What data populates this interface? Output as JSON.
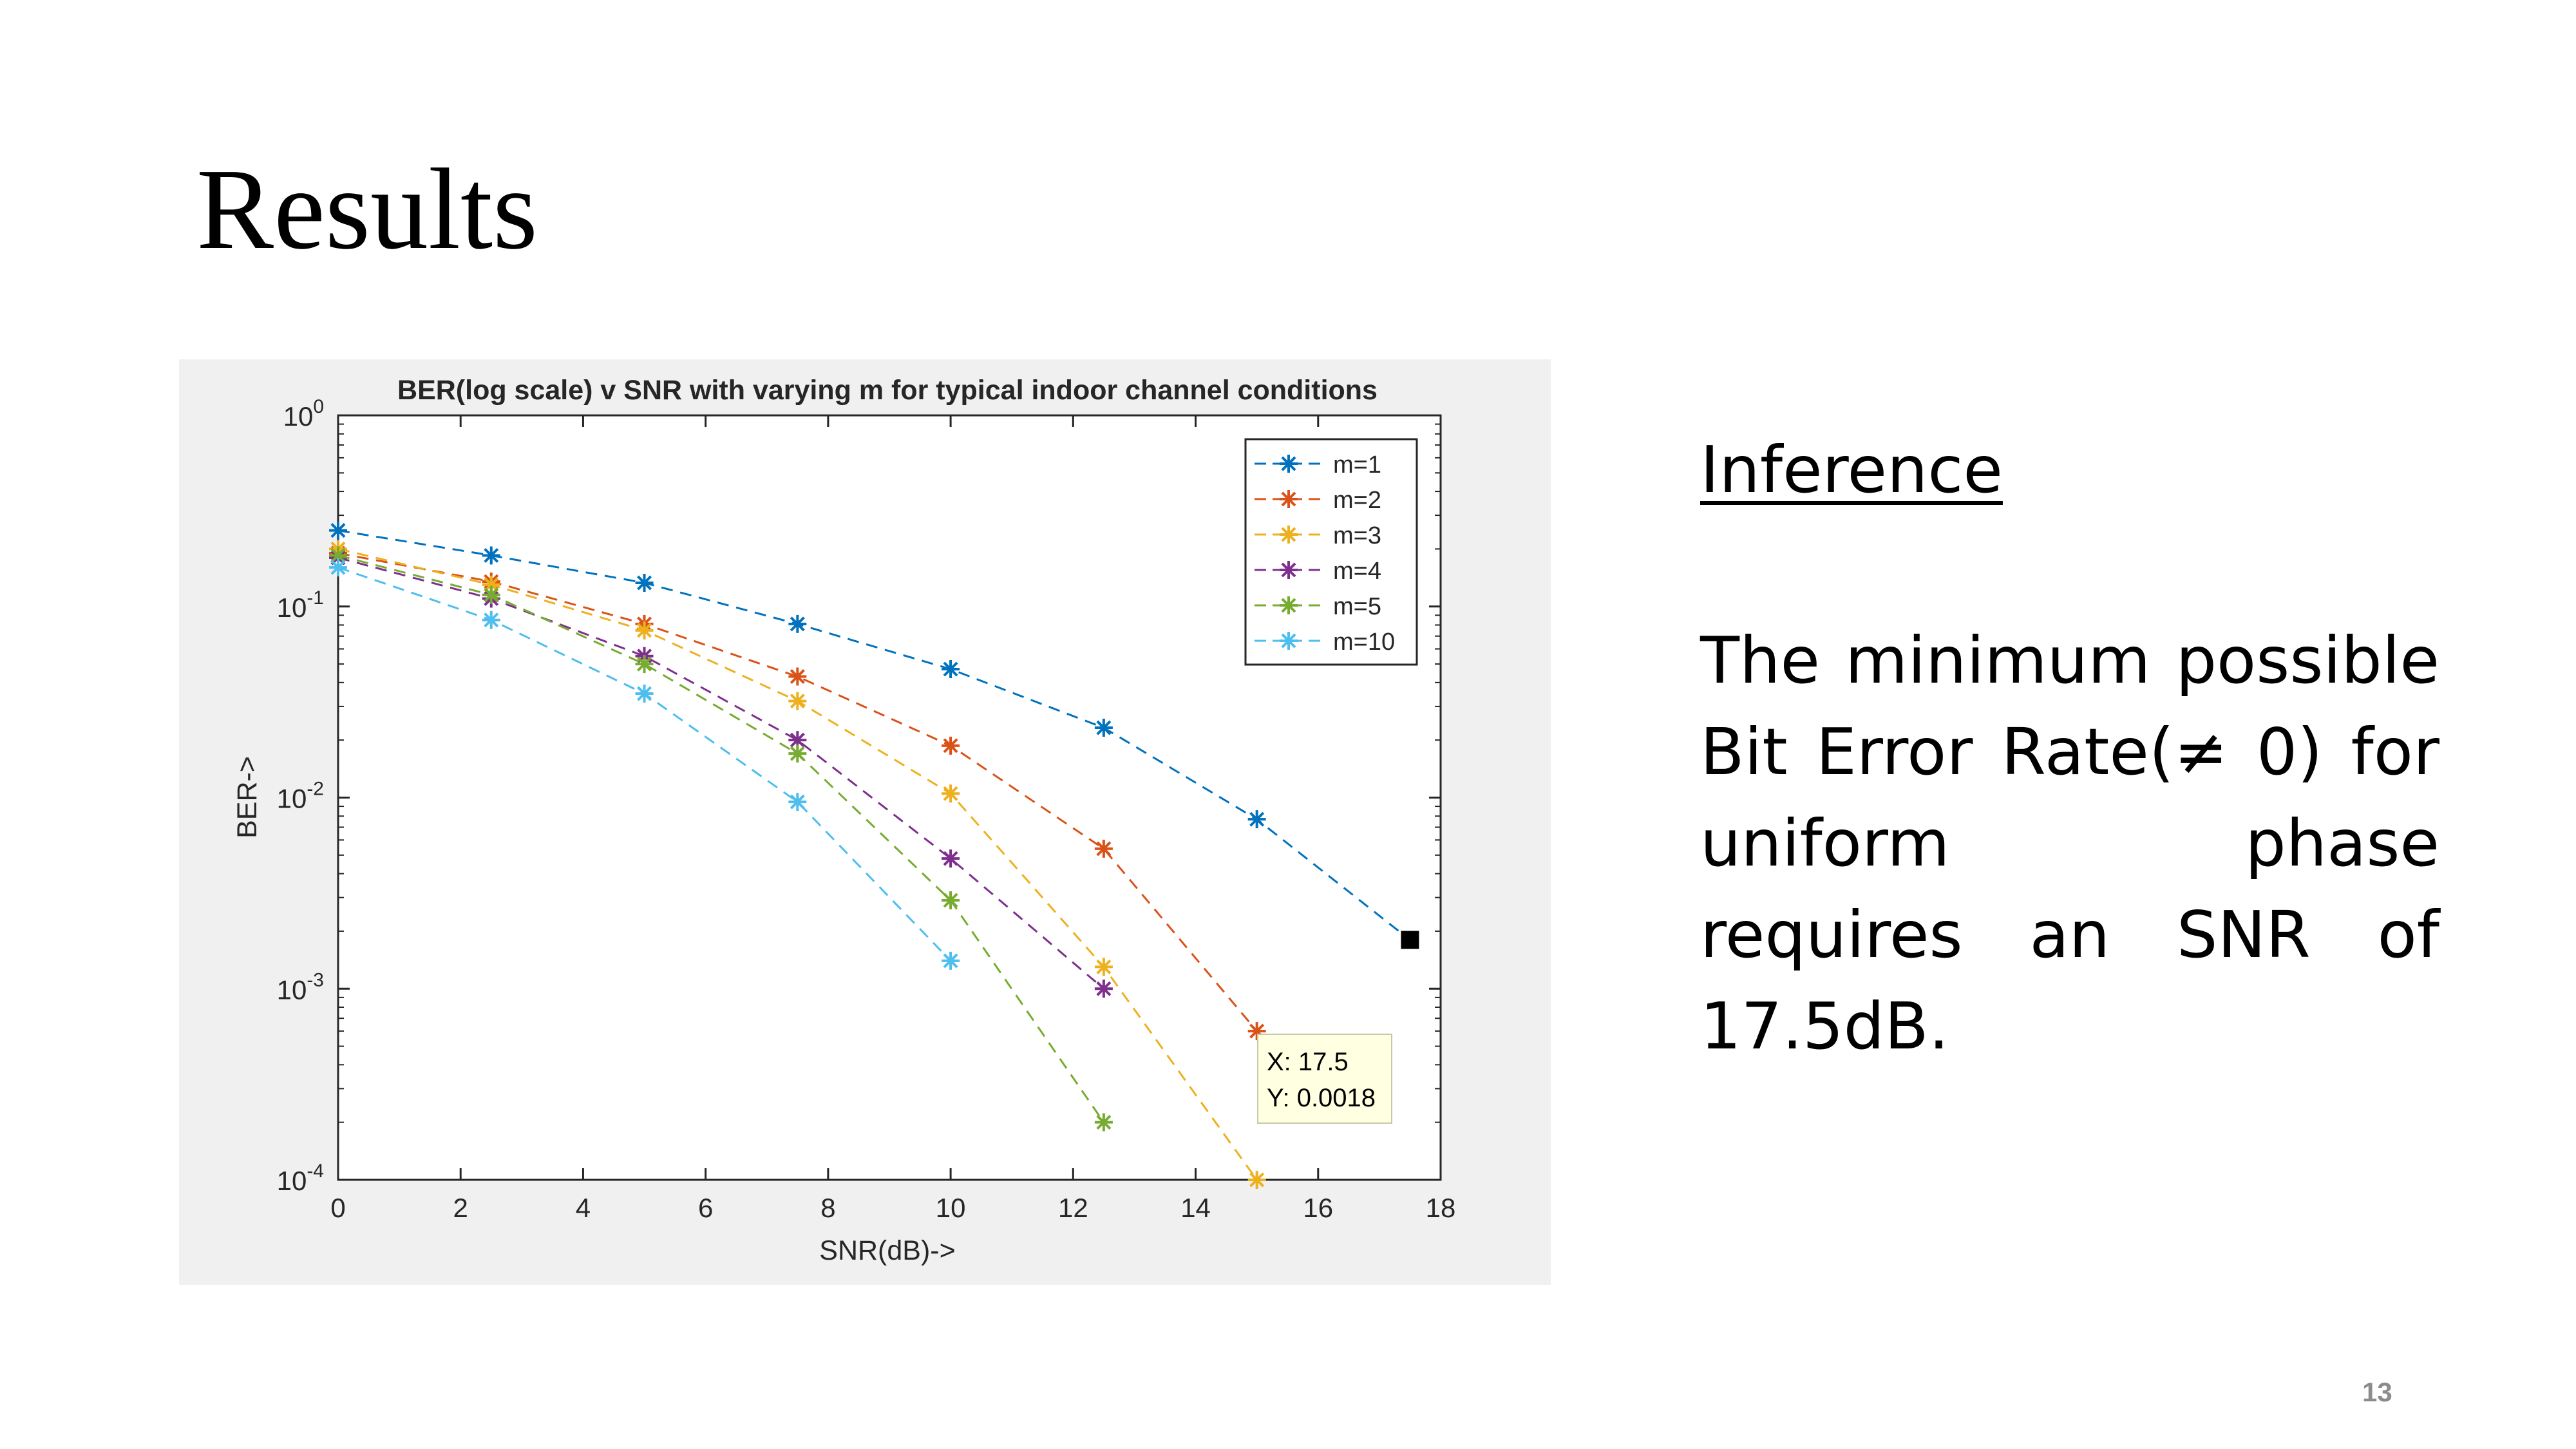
{
  "slide": {
    "title": "Results",
    "page_number": "13"
  },
  "inference": {
    "heading": "Inference",
    "body": "The minimum possible Bit Error Rate(≠ 0) for uniform phase requires an SNR of 17.5dB."
  },
  "chart_data": {
    "type": "line",
    "title": "BER(log scale) v SNR with varying m for typical indoor channel conditions",
    "xlabel": "SNR(dB)->",
    "ylabel": "BER->",
    "xlim": [
      0,
      18
    ],
    "ylim": [
      0.0001,
      1
    ],
    "yscale": "log",
    "x_ticks": [
      0,
      2,
      4,
      6,
      8,
      10,
      12,
      14,
      16,
      18
    ],
    "y_ticks": [
      {
        "value": 1,
        "base": "10",
        "exp": "0"
      },
      {
        "value": 0.1,
        "base": "10",
        "exp": "-1"
      },
      {
        "value": 0.01,
        "base": "10",
        "exp": "-2"
      },
      {
        "value": 0.001,
        "base": "10",
        "exp": "-3"
      },
      {
        "value": 0.0001,
        "base": "10",
        "exp": "-4"
      }
    ],
    "grid": false,
    "legend_position": "top-right",
    "marker": "asterisk",
    "line_style": "dashed",
    "series": [
      {
        "name": "m=1",
        "color": "#0072bd",
        "points": [
          [
            0,
            0.25
          ],
          [
            2.5,
            0.185
          ],
          [
            5,
            0.133
          ],
          [
            7.5,
            0.081
          ],
          [
            10,
            0.047
          ],
          [
            12.5,
            0.0232
          ],
          [
            15,
            0.0077
          ],
          [
            17.5,
            0.0018
          ]
        ]
      },
      {
        "name": "m=2",
        "color": "#d95319",
        "points": [
          [
            0,
            0.19
          ],
          [
            2.5,
            0.135
          ],
          [
            5,
            0.081
          ],
          [
            7.5,
            0.043
          ],
          [
            10,
            0.0187
          ],
          [
            12.5,
            0.0054
          ],
          [
            15,
            0.0006
          ]
        ]
      },
      {
        "name": "m=3",
        "color": "#edb120",
        "points": [
          [
            0,
            0.2
          ],
          [
            2.5,
            0.13
          ],
          [
            5,
            0.075
          ],
          [
            7.5,
            0.032
          ],
          [
            10,
            0.0105
          ],
          [
            12.5,
            0.0013
          ],
          [
            15,
            0.0001
          ]
        ]
      },
      {
        "name": "m=4",
        "color": "#7e2f8e",
        "points": [
          [
            0,
            0.18
          ],
          [
            2.5,
            0.11
          ],
          [
            5,
            0.055
          ],
          [
            7.5,
            0.02
          ],
          [
            10,
            0.0048
          ],
          [
            12.5,
            0.001
          ]
        ]
      },
      {
        "name": "m=5",
        "color": "#77ac30",
        "points": [
          [
            0,
            0.185
          ],
          [
            2.5,
            0.115
          ],
          [
            5,
            0.05
          ],
          [
            7.5,
            0.017
          ],
          [
            10,
            0.0029
          ],
          [
            12.5,
            0.0002
          ]
        ]
      },
      {
        "name": "m=10",
        "color": "#4dbeee",
        "points": [
          [
            0,
            0.16
          ],
          [
            2.5,
            0.085
          ],
          [
            5,
            0.035
          ],
          [
            7.5,
            0.0095
          ],
          [
            10,
            0.0014
          ]
        ]
      }
    ],
    "datatip": {
      "x": 17.5,
      "y": 0.0018,
      "x_label": "X: 17.5",
      "y_label": "Y: 0.0018"
    }
  }
}
